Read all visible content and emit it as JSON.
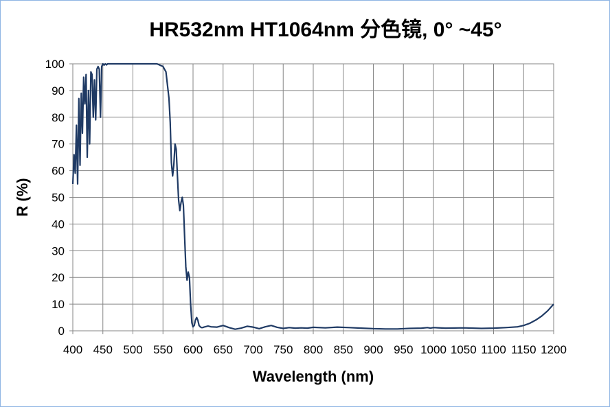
{
  "chart_data": {
    "type": "line",
    "title": "HR532nm HT1064nm 分色镜, 0° ~45°",
    "xlabel": "Wavelength (nm)",
    "ylabel": "R (%)",
    "xlim": [
      400,
      1200
    ],
    "ylim": [
      0,
      100
    ],
    "x_ticks": [
      "400",
      "450",
      "500",
      "550",
      "600",
      "650",
      "700",
      "750",
      "800",
      "850",
      "900",
      "950",
      "1000",
      "1050",
      "1100",
      "1150",
      "1200"
    ],
    "y_ticks": [
      "0",
      "10",
      "20",
      "30",
      "40",
      "50",
      "60",
      "70",
      "80",
      "90",
      "100"
    ],
    "grid": true,
    "legend": "none",
    "line_color": "#1f3a64",
    "series": [
      {
        "x": [
          400,
          402,
          404,
          406,
          408,
          410,
          412,
          414,
          416,
          418,
          420,
          422,
          424,
          426,
          428,
          430,
          432,
          434,
          436,
          438,
          440,
          442,
          444,
          446,
          448,
          450,
          452,
          454,
          456,
          458,
          460,
          470,
          480,
          490,
          500,
          510,
          520,
          530,
          540,
          550,
          555,
          560,
          562,
          564,
          566,
          568,
          570,
          572,
          574,
          576,
          578,
          580,
          582,
          584,
          586,
          588,
          590,
          592,
          594,
          596,
          598,
          600,
          602,
          604,
          606,
          608,
          610,
          612,
          614,
          616,
          618,
          620,
          625,
          630,
          640,
          650,
          660,
          670,
          680,
          690,
          700,
          710,
          720,
          730,
          740,
          750,
          760,
          770,
          780,
          790,
          800,
          820,
          840,
          860,
          880,
          900,
          920,
          940,
          960,
          980,
          990,
          995,
          1000,
          1020,
          1050,
          1080,
          1100,
          1120,
          1140,
          1150,
          1160,
          1170,
          1180,
          1190,
          1200
        ],
        "y": [
          55,
          66,
          59,
          77,
          55,
          87,
          62,
          89,
          74,
          95,
          85,
          96,
          65,
          90,
          70,
          97,
          96,
          80,
          94,
          79,
          98,
          99,
          98,
          80,
          99,
          100,
          99.5,
          100,
          99.6,
          100,
          100,
          100,
          100,
          100,
          100,
          100,
          100,
          100,
          100,
          99,
          97,
          87,
          78,
          63,
          58,
          62,
          70,
          68,
          58,
          49,
          45,
          48,
          50,
          47,
          35,
          24,
          19,
          22,
          20,
          10,
          3,
          1.5,
          2,
          4,
          5,
          4,
          2,
          1.5,
          1.2,
          1.2,
          1.4,
          1.5,
          1.8,
          1.5,
          1.4,
          2.0,
          1.2,
          0.6,
          1.0,
          1.7,
          1.4,
          0.8,
          1.5,
          2.0,
          1.3,
          0.9,
          1.2,
          1.0,
          1.1,
          1.0,
          1.3,
          1.1,
          1.4,
          1.2,
          1.0,
          0.8,
          0.7,
          0.7,
          0.9,
          1.0,
          1.2,
          1.0,
          1.2,
          1.0,
          1.1,
          0.9,
          1.0,
          1.2,
          1.5,
          2.0,
          2.8,
          4.0,
          5.5,
          7.5,
          10
        ]
      }
    ]
  }
}
